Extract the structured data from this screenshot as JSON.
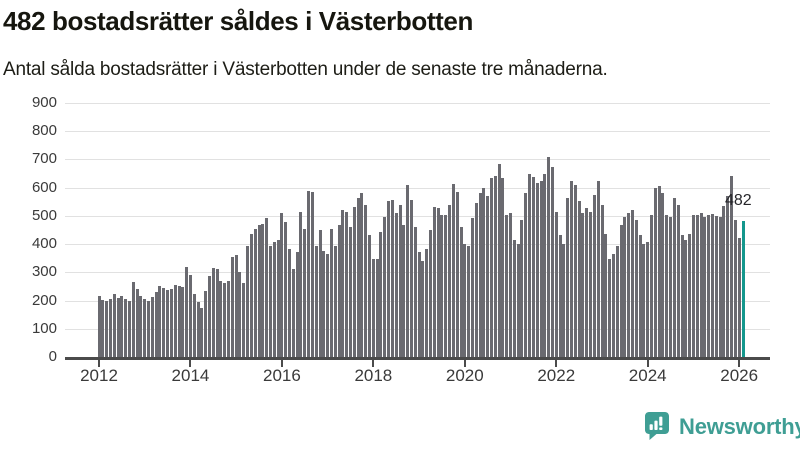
{
  "header": {
    "title": "482 bostadsrätter såldes i Västerbotten",
    "subtitle": "Antal sålda bostadsrätter i Västerbotten under de senaste tre månaderna."
  },
  "chart_data": {
    "type": "bar",
    "title": "482 bostadsrätter såldes i Västerbotten",
    "xlabel": "",
    "ylabel": "",
    "ylim": [
      0,
      900
    ],
    "y_ticks": [
      0,
      100,
      200,
      300,
      400,
      500,
      600,
      700,
      800,
      900
    ],
    "grid": "horizontal",
    "legend": "none",
    "x_tick_labels": [
      "2012",
      "2014",
      "2016",
      "2018",
      "2020",
      "2022",
      "2024",
      "2026"
    ],
    "x_tick_value_indices": [
      0,
      24,
      48,
      72,
      96,
      120,
      144,
      168
    ],
    "x_unit": "month (rolling 3-month totals)",
    "bar_color": "#6A6A70",
    "highlight_color": "#14978D",
    "highlight_index": 169,
    "highlight_label": "482",
    "values": [
      215,
      203,
      200,
      206,
      224,
      210,
      216,
      205,
      199,
      265,
      240,
      217,
      206,
      200,
      211,
      230,
      253,
      245,
      236,
      240,
      254,
      250,
      249,
      318,
      292,
      224,
      196,
      175,
      233,
      287,
      317,
      312,
      270,
      263,
      270,
      353,
      360,
      300,
      263,
      395,
      437,
      455,
      467,
      472,
      491,
      395,
      407,
      413,
      509,
      478,
      383,
      311,
      371,
      515,
      455,
      587,
      583,
      395,
      449,
      377,
      365,
      455,
      395,
      467,
      521,
      515,
      461,
      533,
      563,
      581,
      539,
      431,
      347,
      347,
      443,
      497,
      551,
      557,
      509,
      539,
      467,
      611,
      557,
      461,
      371,
      339,
      383,
      449,
      533,
      527,
      503,
      503,
      539,
      613,
      584,
      461,
      401,
      395,
      491,
      545,
      581,
      599,
      569,
      635,
      641,
      683,
      635,
      503,
      509,
      413,
      401,
      485,
      581,
      647,
      637,
      617,
      623,
      649,
      707,
      673,
      515,
      431,
      401,
      563,
      623,
      611,
      551,
      509,
      527,
      515,
      575,
      623,
      539,
      437,
      347,
      365,
      395,
      467,
      497,
      509,
      521,
      485,
      431,
      401,
      407,
      503,
      599,
      605,
      581,
      503,
      497,
      563,
      539,
      431,
      413,
      437,
      503,
      503,
      509,
      497,
      503,
      507,
      499,
      495,
      535,
      570,
      640,
      487,
      423,
      482
    ]
  },
  "footer": {
    "brand": "Newsworthy",
    "brand_color": "#3F9E94",
    "logo_icon": "newsworthy-speech-bubble-bar-chart-icon"
  }
}
